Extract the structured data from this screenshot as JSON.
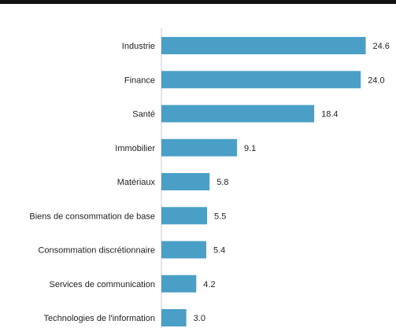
{
  "chart_data": {
    "type": "bar",
    "orientation": "horizontal",
    "title": "",
    "xlabel": "",
    "ylabel": "",
    "categories": [
      "Industrie",
      "Finance",
      "Santé",
      "Immobilier",
      "Matériaux",
      "Biens de consommation de base",
      "Consommation discrétionnaire",
      "Services de communication",
      "Technologies de l'information"
    ],
    "values": [
      24.6,
      24.0,
      18.4,
      9.1,
      5.8,
      5.5,
      5.4,
      4.2,
      3.0
    ],
    "value_labels": [
      "24.6",
      "24.0",
      "18.4",
      "9.1",
      "5.8",
      "5.5",
      "5.4",
      "4.2",
      "3.0"
    ],
    "xlim": [
      0,
      25
    ],
    "grid": false,
    "legend": "none",
    "bar_color": "#4a9fc6",
    "axis_color": "#c8c8c8"
  }
}
